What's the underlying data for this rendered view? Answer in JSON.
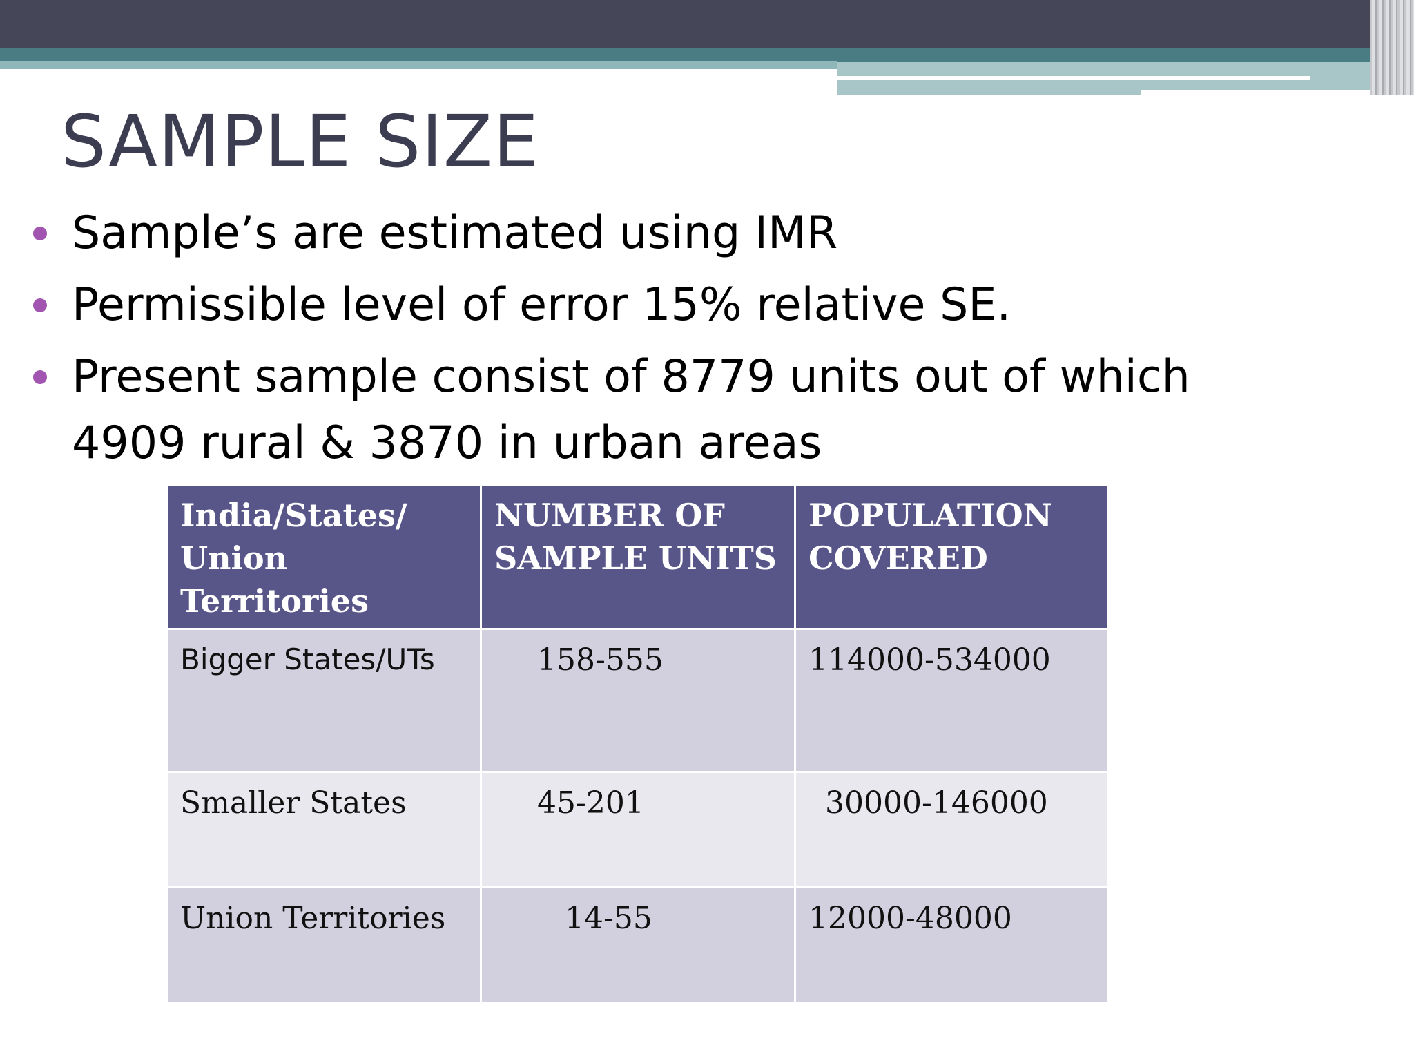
{
  "slide": {
    "title": "SAMPLE SIZE",
    "bullets": [
      "Sample’s are estimated using IMR",
      "Permissible level of error 15% relative SE.",
      "Present sample consist of 8779 units out of which 4909 rural & 3870 in urban areas"
    ],
    "table": {
      "headers": [
        "India/States/ Union Territories",
        "NUMBER OF SAMPLE UNITS",
        "POPULATION COVERED"
      ],
      "rows": [
        [
          "Bigger States/UTs",
          "158-555",
          "114000-534000"
        ],
        [
          "Smaller States",
          "45-201",
          "30000-146000"
        ],
        [
          "Union Territories",
          "14-55",
          "12000-48000"
        ]
      ]
    },
    "colors": {
      "title": "#3d3d52",
      "bullet_dot": "#a154b0",
      "header_bg": "#585589",
      "row_odd_bg": "#d2d0de",
      "row_even_bg": "#e9e8ef"
    }
  }
}
